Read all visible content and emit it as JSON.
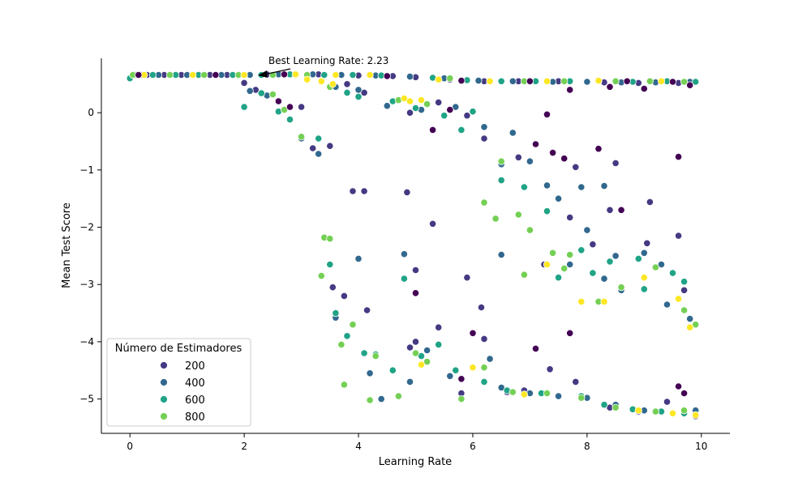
{
  "chart_data": {
    "type": "scatter",
    "title": "",
    "xlabel": "Learning Rate",
    "ylabel": "Mean Test Score",
    "xlim": [
      -0.5,
      10.5
    ],
    "ylim": [
      -5.6,
      0.95
    ],
    "xticks": [
      0,
      2,
      4,
      6,
      8,
      10
    ],
    "xtick_labels": [
      "0",
      "2",
      "4",
      "6",
      "8",
      "10"
    ],
    "yticks": [
      0,
      -1,
      -2,
      -3,
      -4,
      -5
    ],
    "ytick_labels": [
      "0",
      "−1",
      "−2",
      "−3",
      "−4",
      "−5"
    ],
    "grid": false,
    "legend": {
      "title": "Número de Estimadores",
      "placement": "lower-left",
      "entries": [
        {
          "label": "200",
          "color": "#443a83"
        },
        {
          "label": "400",
          "color": "#31688e"
        },
        {
          "label": "600",
          "color": "#20a386"
        },
        {
          "label": "800",
          "color": "#74d055"
        }
      ]
    },
    "annotation": {
      "text": "Best Learning Rate: 2.23",
      "point": [
        2.23,
        0.66
      ]
    },
    "color_scale": [
      "#440154",
      "#443a83",
      "#31688e",
      "#20a386",
      "#74d055",
      "#fde725"
    ],
    "series": [
      {
        "color": "#443a83",
        "points": [
          [
            0.1,
            0.66
          ],
          [
            0.3,
            0.66
          ],
          [
            0.6,
            0.66
          ],
          [
            0.9,
            0.66
          ],
          [
            1.4,
            0.66
          ],
          [
            1.7,
            0.66
          ],
          [
            2.4,
            0.67
          ],
          [
            2.9,
            0.67
          ],
          [
            3.3,
            0.67
          ],
          [
            3.6,
            0.66
          ],
          [
            4.0,
            0.65
          ],
          [
            4.6,
            0.64
          ],
          [
            5.0,
            0.62
          ],
          [
            5.6,
            0.58
          ],
          [
            6.2,
            0.55
          ],
          [
            6.8,
            0.55
          ],
          [
            7.5,
            0.55
          ],
          [
            8.3,
            0.53
          ],
          [
            8.9,
            0.52
          ],
          [
            9.6,
            0.52
          ],
          [
            2.0,
            0.52
          ],
          [
            2.2,
            0.4
          ],
          [
            3.0,
            0.1
          ],
          [
            3.8,
            0.5
          ],
          [
            4.1,
            0.35
          ],
          [
            4.9,
            0.0
          ],
          [
            5.4,
            0.18
          ],
          [
            5.9,
            -0.05
          ],
          [
            3.2,
            -0.62
          ],
          [
            3.5,
            -0.58
          ],
          [
            3.9,
            -1.37
          ],
          [
            4.1,
            -1.37
          ],
          [
            4.85,
            -1.39
          ],
          [
            5.3,
            -1.94
          ],
          [
            6.2,
            -0.45
          ],
          [
            6.8,
            -0.78
          ],
          [
            7.8,
            -0.95
          ],
          [
            8.5,
            -0.88
          ],
          [
            9.1,
            -1.56
          ],
          [
            8.4,
            -1.7
          ],
          [
            7.7,
            -1.83
          ],
          [
            3.55,
            -3.05
          ],
          [
            3.75,
            -3.2
          ],
          [
            4.15,
            -3.45
          ],
          [
            5.0,
            -2.75
          ],
          [
            5.9,
            -2.88
          ],
          [
            6.15,
            -3.4
          ],
          [
            7.25,
            -2.65
          ],
          [
            8.1,
            -2.3
          ],
          [
            9.05,
            -2.28
          ],
          [
            9.6,
            -2.15
          ],
          [
            9.7,
            -3.1
          ],
          [
            5.0,
            -4.0
          ],
          [
            5.4,
            -3.75
          ],
          [
            6.2,
            -3.95
          ],
          [
            6.9,
            -4.85
          ],
          [
            7.35,
            -4.48
          ],
          [
            7.8,
            -4.7
          ],
          [
            8.4,
            -5.15
          ],
          [
            8.9,
            -5.22
          ],
          [
            9.4,
            -5.05
          ],
          [
            9.9,
            -5.3
          ],
          [
            4.9,
            -4.1
          ],
          [
            5.8,
            -4.9
          ],
          [
            6.6,
            -4.88
          ]
        ]
      },
      {
        "color": "#31688e",
        "points": [
          [
            0.2,
            0.66
          ],
          [
            0.5,
            0.66
          ],
          [
            1.0,
            0.66
          ],
          [
            1.6,
            0.66
          ],
          [
            2.1,
            0.66
          ],
          [
            2.6,
            0.67
          ],
          [
            3.2,
            0.67
          ],
          [
            3.7,
            0.66
          ],
          [
            4.3,
            0.65
          ],
          [
            4.9,
            0.63
          ],
          [
            5.5,
            0.6
          ],
          [
            6.1,
            0.56
          ],
          [
            6.7,
            0.55
          ],
          [
            7.4,
            0.54
          ],
          [
            8.0,
            0.54
          ],
          [
            8.6,
            0.53
          ],
          [
            9.2,
            0.53
          ],
          [
            9.8,
            0.54
          ],
          [
            2.1,
            0.38
          ],
          [
            2.4,
            0.3
          ],
          [
            3.0,
            -0.45
          ],
          [
            3.3,
            -0.72
          ],
          [
            3.6,
            0.45
          ],
          [
            4.0,
            0.4
          ],
          [
            4.5,
            0.12
          ],
          [
            5.1,
            0.05
          ],
          [
            5.7,
            0.1
          ],
          [
            6.2,
            -0.25
          ],
          [
            6.5,
            -0.9
          ],
          [
            6.7,
            -0.35
          ],
          [
            7.0,
            -0.85
          ],
          [
            7.5,
            -1.5
          ],
          [
            8.0,
            -2.05
          ],
          [
            8.5,
            -2.5
          ],
          [
            9.0,
            -2.45
          ],
          [
            9.3,
            -2.65
          ],
          [
            4.0,
            -2.55
          ],
          [
            4.8,
            -2.47
          ],
          [
            6.5,
            -2.48
          ],
          [
            7.7,
            -2.65
          ],
          [
            8.3,
            -2.9
          ],
          [
            8.6,
            -3.1
          ],
          [
            9.4,
            -3.35
          ],
          [
            9.8,
            -3.6
          ],
          [
            3.6,
            -3.58
          ],
          [
            4.2,
            -4.55
          ],
          [
            4.4,
            -5.0
          ],
          [
            4.9,
            -4.7
          ],
          [
            5.2,
            -4.15
          ],
          [
            5.6,
            -4.6
          ],
          [
            6.3,
            -4.3
          ],
          [
            6.5,
            -4.8
          ],
          [
            7.0,
            -4.9
          ],
          [
            7.5,
            -4.95
          ],
          [
            8.0,
            -4.98
          ],
          [
            8.5,
            -5.1
          ],
          [
            9.0,
            -5.2
          ],
          [
            9.5,
            -5.25
          ],
          [
            9.9,
            -5.2
          ],
          [
            7.3,
            -1.27
          ],
          [
            7.9,
            -1.3
          ],
          [
            8.3,
            -1.28
          ]
        ]
      },
      {
        "color": "#20a386",
        "points": [
          [
            0.0,
            0.6
          ],
          [
            0.4,
            0.66
          ],
          [
            0.8,
            0.66
          ],
          [
            1.2,
            0.66
          ],
          [
            1.8,
            0.66
          ],
          [
            2.3,
            0.66
          ],
          [
            2.8,
            0.67
          ],
          [
            3.4,
            0.66
          ],
          [
            3.9,
            0.66
          ],
          [
            4.4,
            0.65
          ],
          [
            5.3,
            0.61
          ],
          [
            5.9,
            0.57
          ],
          [
            6.5,
            0.55
          ],
          [
            7.1,
            0.55
          ],
          [
            7.7,
            0.55
          ],
          [
            8.2,
            0.55
          ],
          [
            8.8,
            0.54
          ],
          [
            9.4,
            0.55
          ],
          [
            9.9,
            0.54
          ],
          [
            2.0,
            0.1
          ],
          [
            2.3,
            0.34
          ],
          [
            2.6,
            0.02
          ],
          [
            2.8,
            -0.12
          ],
          [
            3.3,
            -0.45
          ],
          [
            3.8,
            0.35
          ],
          [
            4.0,
            0.28
          ],
          [
            4.6,
            0.2
          ],
          [
            5.0,
            0.08
          ],
          [
            5.5,
            -0.05
          ],
          [
            5.8,
            -0.3
          ],
          [
            6.0,
            0.02
          ],
          [
            6.5,
            -1.18
          ],
          [
            6.9,
            -1.3
          ],
          [
            7.3,
            -1.72
          ],
          [
            7.9,
            -2.4
          ],
          [
            8.4,
            -2.6
          ],
          [
            8.9,
            -2.55
          ],
          [
            9.5,
            -2.8
          ],
          [
            9.7,
            -2.95
          ],
          [
            3.5,
            -2.65
          ],
          [
            3.6,
            -3.5
          ],
          [
            3.8,
            -3.9
          ],
          [
            4.1,
            -4.2
          ],
          [
            4.3,
            -4.22
          ],
          [
            4.6,
            -4.5
          ],
          [
            5.1,
            -4.25
          ],
          [
            5.4,
            -4.05
          ],
          [
            5.7,
            -4.5
          ],
          [
            6.2,
            -4.7
          ],
          [
            6.6,
            -4.85
          ],
          [
            7.2,
            -4.9
          ],
          [
            7.9,
            -4.95
          ],
          [
            8.3,
            -5.1
          ],
          [
            8.8,
            -5.18
          ],
          [
            9.3,
            -5.22
          ],
          [
            9.7,
            -5.25
          ],
          [
            4.8,
            -2.9
          ],
          [
            7.5,
            -2.88
          ],
          [
            8.1,
            -2.8
          ],
          [
            9.0,
            -3.08
          ]
        ]
      },
      {
        "color": "#74d055",
        "points": [
          [
            0.05,
            0.66
          ],
          [
            0.7,
            0.66
          ],
          [
            1.3,
            0.66
          ],
          [
            1.9,
            0.66
          ],
          [
            2.5,
            0.66
          ],
          [
            3.1,
            0.66
          ],
          [
            3.5,
            0.45
          ],
          [
            4.7,
            0.22
          ],
          [
            5.2,
            0.15
          ],
          [
            5.6,
            0.6
          ],
          [
            6.3,
            0.55
          ],
          [
            6.9,
            0.55
          ],
          [
            7.6,
            0.55
          ],
          [
            8.5,
            0.55
          ],
          [
            9.1,
            0.55
          ],
          [
            9.7,
            0.54
          ],
          [
            2.5,
            0.32
          ],
          [
            2.7,
            0.05
          ],
          [
            3.0,
            -0.42
          ],
          [
            3.4,
            -2.18
          ],
          [
            3.5,
            -2.2
          ],
          [
            3.35,
            -2.85
          ],
          [
            3.7,
            -4.05
          ],
          [
            3.9,
            -3.7
          ],
          [
            4.3,
            -4.25
          ],
          [
            5.0,
            -4.2
          ],
          [
            5.2,
            -4.35
          ],
          [
            5.8,
            -5.0
          ],
          [
            6.2,
            -1.57
          ],
          [
            6.4,
            -1.85
          ],
          [
            6.5,
            -0.85
          ],
          [
            6.8,
            -1.78
          ],
          [
            7.0,
            -2.05
          ],
          [
            7.4,
            -2.45
          ],
          [
            7.6,
            -2.72
          ],
          [
            8.2,
            -3.3
          ],
          [
            8.6,
            -3.05
          ],
          [
            9.2,
            -2.7
          ],
          [
            9.7,
            -3.45
          ],
          [
            9.9,
            -3.7
          ],
          [
            6.2,
            -4.45
          ],
          [
            6.7,
            -4.88
          ],
          [
            7.3,
            -4.9
          ],
          [
            7.9,
            -4.98
          ],
          [
            8.5,
            -5.15
          ],
          [
            9.2,
            -5.22
          ],
          [
            9.7,
            -5.2
          ],
          [
            4.2,
            -5.02
          ],
          [
            4.7,
            -4.95
          ],
          [
            3.75,
            -4.75
          ],
          [
            6.9,
            -2.83
          ],
          [
            7.7,
            -2.48
          ]
        ]
      },
      {
        "color": "#fde725",
        "points": [
          [
            0.25,
            0.66
          ],
          [
            1.1,
            0.66
          ],
          [
            2.0,
            0.66
          ],
          [
            2.9,
            0.67
          ],
          [
            3.6,
            0.66
          ],
          [
            4.2,
            0.66
          ],
          [
            5.4,
            0.58
          ],
          [
            6.3,
            0.55
          ],
          [
            7.3,
            0.55
          ],
          [
            8.2,
            0.56
          ],
          [
            9.3,
            0.55
          ],
          [
            3.1,
            0.58
          ],
          [
            3.35,
            0.55
          ],
          [
            3.55,
            0.5
          ],
          [
            4.8,
            0.25
          ],
          [
            4.9,
            0.2
          ],
          [
            5.1,
            0.22
          ],
          [
            6.0,
            -4.45
          ],
          [
            6.9,
            -4.92
          ],
          [
            7.3,
            -2.65
          ],
          [
            7.9,
            -3.3
          ],
          [
            8.3,
            -3.3
          ],
          [
            9.0,
            -2.88
          ],
          [
            9.6,
            -3.25
          ],
          [
            9.8,
            -3.75
          ],
          [
            8.9,
            -5.2
          ],
          [
            9.5,
            -5.25
          ],
          [
            9.9,
            -5.28
          ],
          [
            5.1,
            -4.4
          ]
        ]
      },
      {
        "color": "#440154",
        "points": [
          [
            0.15,
            0.66
          ],
          [
            1.5,
            0.66
          ],
          [
            2.7,
            0.67
          ],
          [
            4.5,
            0.64
          ],
          [
            5.8,
            0.56
          ],
          [
            7.0,
            0.55
          ],
          [
            8.7,
            0.55
          ],
          [
            9.5,
            0.54
          ],
          [
            2.6,
            0.2
          ],
          [
            2.8,
            0.1
          ],
          [
            5.3,
            -0.3
          ],
          [
            5.6,
            0.05
          ],
          [
            7.1,
            -0.55
          ],
          [
            7.4,
            -0.7
          ],
          [
            7.6,
            -0.8
          ],
          [
            8.6,
            -1.7
          ],
          [
            7.7,
            -3.85
          ],
          [
            7.1,
            -4.12
          ],
          [
            6.0,
            -3.85
          ],
          [
            5.0,
            -3.15
          ],
          [
            5.8,
            -4.65
          ],
          [
            9.6,
            -4.78
          ],
          [
            9.7,
            -4.9
          ],
          [
            9.6,
            -0.77
          ],
          [
            8.2,
            -0.63
          ],
          [
            7.3,
            -0.03
          ],
          [
            7.7,
            0.4
          ],
          [
            8.4,
            0.45
          ],
          [
            9.0,
            0.42
          ],
          [
            9.8,
            0.48
          ]
        ]
      }
    ]
  }
}
